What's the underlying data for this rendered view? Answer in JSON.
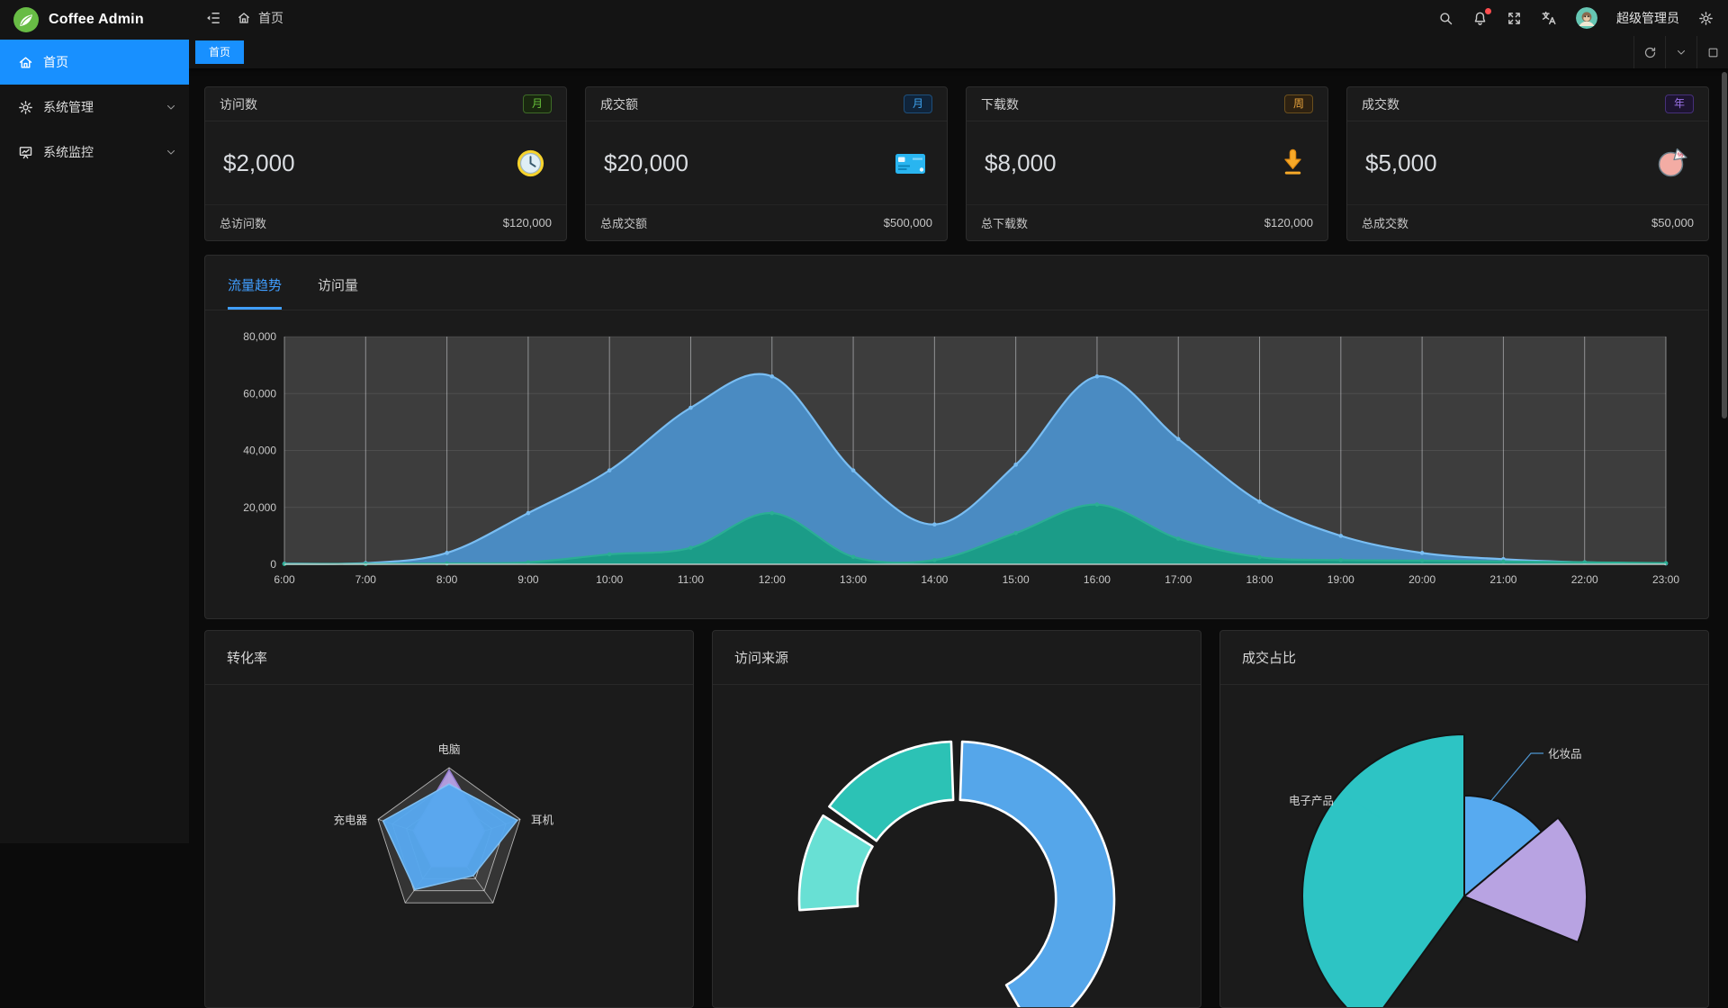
{
  "app": {
    "name": "Coffee Admin",
    "accent_color": "#1890ff",
    "logo_icon": "leaf-logo-icon"
  },
  "sidebar": {
    "items": [
      {
        "label": "首页",
        "icon": "home-icon",
        "active": true,
        "expandable": false
      },
      {
        "label": "系统管理",
        "icon": "gear-icon",
        "active": false,
        "expandable": true
      },
      {
        "label": "系统监控",
        "icon": "monitor-icon",
        "active": false,
        "expandable": true
      }
    ]
  },
  "navbar": {
    "collapse_icon": "fold-icon",
    "breadcrumb_icon": "home-icon",
    "breadcrumb": "首页",
    "icons": [
      "search-icon",
      "bell-icon",
      "fullscreen-icon",
      "translate-icon"
    ],
    "notification_dot": true,
    "username": "超级管理员",
    "settings_icon": "gear-icon"
  },
  "tabbar": {
    "tabs": [
      {
        "label": "首页",
        "active": true
      }
    ],
    "controls": [
      "refresh-icon",
      "chevron-down-icon",
      "maximize-icon"
    ]
  },
  "stat_cards": [
    {
      "title": "访问数",
      "badge": "月",
      "badge_style": {
        "color": "#67c23a",
        "bg": "#19270f",
        "border": "#3e6b27"
      },
      "value": "$2,000",
      "icon": "clock-icon",
      "footer_label": "总访问数",
      "footer_value": "$120,000"
    },
    {
      "title": "成交额",
      "badge": "月",
      "badge_style": {
        "color": "#3ea4f0",
        "bg": "#10243a",
        "border": "#1d4f7c"
      },
      "value": "$20,000",
      "icon": "credit-card-icon",
      "footer_label": "总成交额",
      "footer_value": "$500,000"
    },
    {
      "title": "下载数",
      "badge": "周",
      "badge_style": {
        "color": "#e6a23c",
        "bg": "#2d2111",
        "border": "#6b4f1d"
      },
      "value": "$8,000",
      "icon": "download-icon",
      "footer_label": "总下载数",
      "footer_value": "$120,000"
    },
    {
      "title": "成交数",
      "badge": "年",
      "badge_style": {
        "color": "#9b72e8",
        "bg": "#1d1430",
        "border": "#46307a"
      },
      "value": "$5,000",
      "icon": "pie-percent-icon",
      "footer_label": "总成交数",
      "footer_value": "$50,000"
    }
  ],
  "trend_panel": {
    "tabs": [
      {
        "label": "流量趋势",
        "active": true
      },
      {
        "label": "访问量",
        "active": false
      }
    ]
  },
  "chart_data": [
    {
      "type": "area",
      "title": "流量趋势",
      "x": [
        "6:00",
        "7:00",
        "8:00",
        "9:00",
        "10:00",
        "11:00",
        "12:00",
        "13:00",
        "14:00",
        "15:00",
        "16:00",
        "17:00",
        "18:00",
        "19:00",
        "20:00",
        "21:00",
        "22:00",
        "23:00"
      ],
      "ylim": [
        0,
        80000
      ],
      "yticks": [
        0,
        20000,
        40000,
        60000,
        80000
      ],
      "ytick_labels": [
        "0",
        "20,000",
        "40,000",
        "60,000",
        "80,000"
      ],
      "grid": true,
      "plot_bg": "#3d3d3d",
      "legend": "none",
      "series": [
        {
          "id": "blue",
          "line_color": "#79bdf2",
          "fill_color": "#4a8bc2",
          "values": [
            200,
            400,
            4000,
            18000,
            33000,
            55000,
            66000,
            33000,
            14000,
            35000,
            66000,
            44000,
            22000,
            10000,
            4000,
            1800,
            700,
            300
          ]
        },
        {
          "id": "teal",
          "line_color": "#2bae94",
          "fill_color": "#1b9c88",
          "values": [
            100,
            150,
            300,
            700,
            3500,
            5800,
            18000,
            2600,
            1500,
            11000,
            21000,
            9000,
            2500,
            1500,
            1300,
            1000,
            700,
            400
          ]
        }
      ]
    },
    {
      "type": "radar",
      "title": "转化率",
      "axes": [
        "电脑",
        "耳机",
        "",
        "",
        "充电器"
      ],
      "max": 100,
      "series": [
        {
          "id": "purple",
          "color": "#b7a1e3",
          "stroke": "#9b82d6",
          "values": [
            97,
            50,
            40,
            40,
            50
          ]
        },
        {
          "id": "blue",
          "color": "#57a8ef",
          "stroke": "#82c3f7",
          "values": [
            78,
            96,
            55,
            78,
            93
          ]
        }
      ]
    },
    {
      "type": "donut",
      "title": "访问来源",
      "inner_ratio": 0.63,
      "segments": [
        {
          "color": "#55a6ea",
          "start_deg": 272,
          "end_deg": 420
        },
        {
          "color": "#2cc2b5",
          "start_deg": 216,
          "end_deg": 268
        },
        {
          "color": "#68e0d4",
          "start_deg": 176,
          "end_deg": 212
        }
      ]
    },
    {
      "type": "rose-pie",
      "title": "成交占比",
      "slices": [
        {
          "label": "电子产品",
          "color": "#2dc4c4",
          "start_deg": 126,
          "end_deg": 270,
          "radius": 180
        },
        {
          "label": "化妆品",
          "color": "#57aaf0",
          "start_deg": 270,
          "end_deg": 320,
          "radius": 112
        },
        {
          "label": "",
          "color": "#b8a3e2",
          "start_deg": 320,
          "end_deg": 382,
          "radius": 136
        }
      ]
    }
  ]
}
